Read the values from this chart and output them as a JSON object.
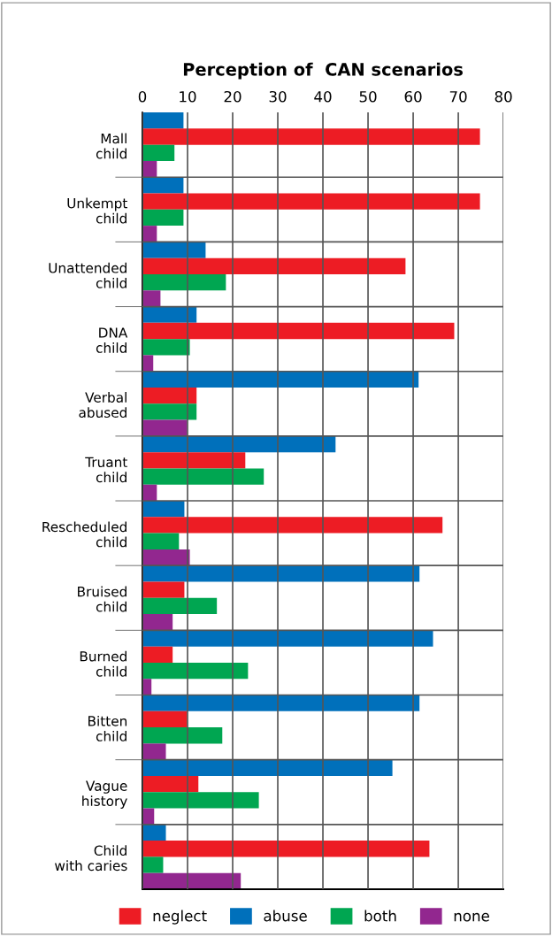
{
  "chart_data": {
    "type": "bar",
    "orientation": "horizontal",
    "title": "Perception of  CAN scenarios",
    "categories": [
      "Mall\nchild",
      "Unkempt\nchild",
      "Unattended\nchild",
      "DNA\nchild",
      "Verbal\nabused",
      "Truant\nchild",
      "Rescheduled\nchild",
      "Bruised\nchild",
      "Burned\nchild",
      "Bitten\nchild",
      "Vague\nhistory",
      "Child\nwith caries"
    ],
    "series": [
      {
        "name": "abuse",
        "color": "#0070bb",
        "values": [
          9.1,
          9.1,
          14.0,
          12.0,
          61.2,
          42.8,
          9.3,
          61.4,
          64.4,
          61.4,
          55.4,
          5.2
        ]
      },
      {
        "name": "neglect",
        "color": "#ed1c24",
        "values": [
          74.8,
          74.8,
          58.3,
          69.1,
          12.0,
          22.8,
          66.5,
          9.3,
          6.7,
          9.9,
          12.4,
          63.6
        ]
      },
      {
        "name": "both",
        "color": "#00a651",
        "values": [
          7.1,
          9.1,
          18.5,
          10.5,
          12.0,
          26.9,
          8.1,
          16.5,
          23.4,
          17.7,
          25.8,
          4.6
        ]
      },
      {
        "name": "none",
        "color": "#92278f",
        "values": [
          3.2,
          3.2,
          4.0,
          2.4,
          9.9,
          3.2,
          10.5,
          6.7,
          2.0,
          5.2,
          2.6,
          21.8
        ]
      }
    ],
    "xlim": [
      0,
      80
    ],
    "xticks": [
      0,
      10,
      20,
      30,
      40,
      50,
      60,
      70,
      80
    ],
    "grid": true,
    "legend": "bottom"
  }
}
